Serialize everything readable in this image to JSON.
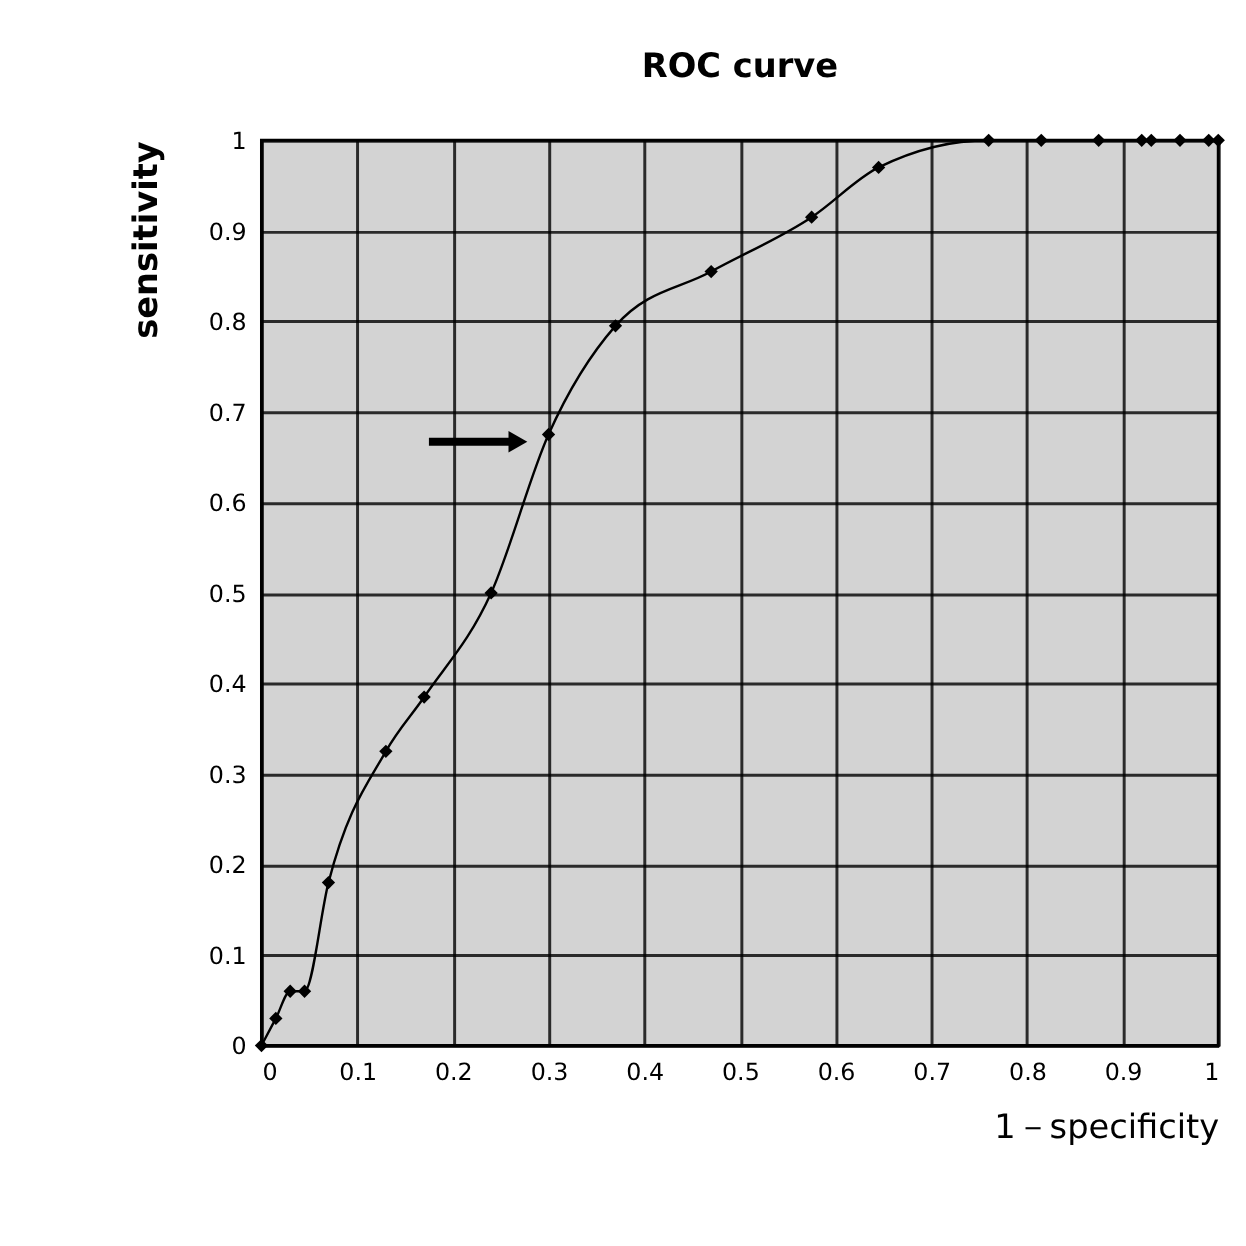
{
  "chart_data": {
    "type": "line",
    "title": "ROC curve",
    "xlabel": "1－specificity",
    "ylabel": "sensitivity",
    "x": [
      0,
      0.015,
      0.03,
      0.045,
      0.07,
      0.13,
      0.17,
      0.24,
      0.3,
      0.37,
      0.47,
      0.575,
      0.645,
      0.76,
      0.815,
      0.875,
      0.92,
      0.93,
      0.96,
      0.99,
      1.0
    ],
    "series": [
      {
        "color": "#000000",
        "values": [
          0,
          0.03,
          0.06,
          0.06,
          0.18,
          0.325,
          0.385,
          0.5,
          0.675,
          0.795,
          0.855,
          0.915,
          0.97,
          1,
          1,
          1,
          1,
          1,
          1,
          1,
          1
        ]
      }
    ],
    "xlim": [
      0,
      1
    ],
    "ylim": [
      0,
      1
    ],
    "xticks": [
      0,
      0.1,
      0.2,
      0.3,
      0.4,
      0.5,
      0.6,
      0.7,
      0.8,
      0.9,
      1
    ],
    "yticks": [
      0,
      0.1,
      0.2,
      0.3,
      0.4,
      0.5,
      0.6,
      0.7,
      0.8,
      0.9,
      1
    ],
    "grid": true,
    "marker": "diamond",
    "line_style": "solid"
  }
}
